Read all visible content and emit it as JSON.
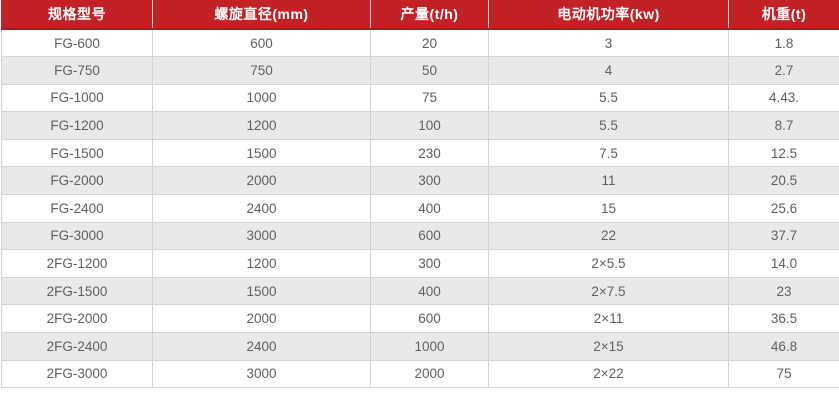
{
  "colors": {
    "header_bg": "#c22126",
    "header_border_bottom": "#a51d21",
    "header_text": "#ffffff",
    "row_even_bg": "#ffffff",
    "row_odd_bg": "#e9e9e9",
    "cell_border": "#d4d4d4",
    "body_text": "#5e5e5e"
  },
  "chart_data": {
    "type": "table",
    "title": "",
    "columns": [
      "规格型号",
      "螺旋直径(mm)",
      "产量(t/h)",
      "电动机功率(kw)",
      "机重(t)"
    ],
    "rows": [
      [
        "FG-600",
        "600",
        "20",
        "3",
        "1.8"
      ],
      [
        "FG-750",
        "750",
        "50",
        "4",
        "2.7"
      ],
      [
        "FG-1000",
        "1000",
        "75",
        "5.5",
        "4.43."
      ],
      [
        "FG-1200",
        "1200",
        "100",
        "5.5",
        "8.7"
      ],
      [
        "FG-1500",
        "1500",
        "230",
        "7.5",
        "12.5"
      ],
      [
        "FG-2000",
        "2000",
        "300",
        "11",
        "20.5"
      ],
      [
        "FG-2400",
        "2400",
        "400",
        "15",
        "25.6"
      ],
      [
        "FG-3000",
        "3000",
        "600",
        "22",
        "37.7"
      ],
      [
        "2FG-1200",
        "1200",
        "300",
        "2×5.5",
        "14.0"
      ],
      [
        "2FG-1500",
        "1500",
        "400",
        "2×7.5",
        "23"
      ],
      [
        "2FG-2000",
        "2000",
        "600",
        "2×11",
        "36.5"
      ],
      [
        "2FG-2400",
        "2400",
        "1000",
        "2×15",
        "46.8"
      ],
      [
        "2FG-3000",
        "3000",
        "2000",
        "2×22",
        "75"
      ]
    ]
  }
}
